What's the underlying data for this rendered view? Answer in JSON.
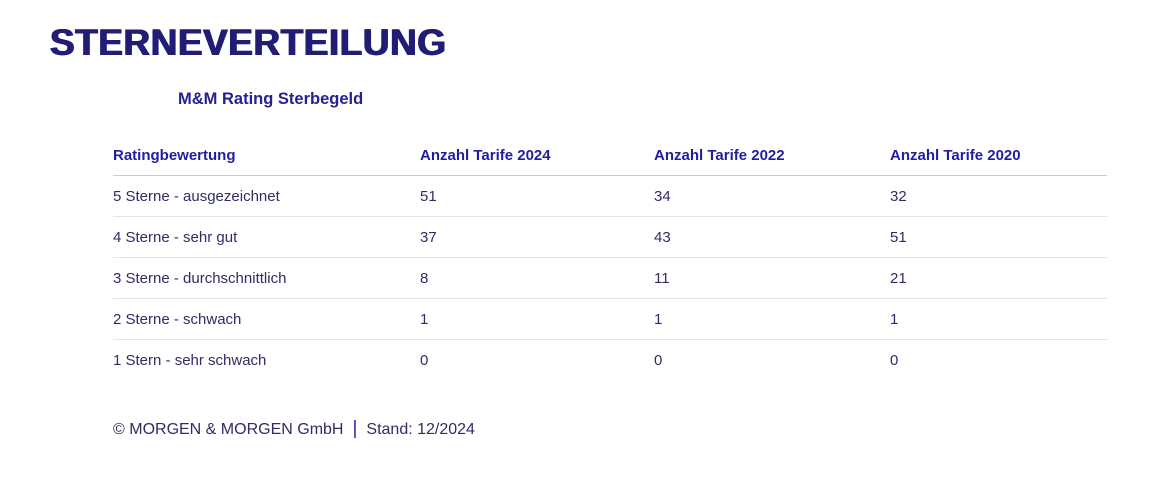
{
  "page": {
    "title": "STERNEVERTEILUNG",
    "subtitle": "M&M Rating Sterbegeld"
  },
  "colors": {
    "title_indigo": "#211c74",
    "subtitle_blue": "#262094",
    "header_blue": "#221da0",
    "body_navy": "#2e2d64",
    "header_divider": "#c6cfd8",
    "row_divider": "#dfe5ea",
    "background": "#ffffff"
  },
  "chart_data": {
    "type": "table",
    "title": "STERNEVERTEILUNG",
    "subtitle": "M&M Rating Sterbegeld",
    "columns": [
      "Ratingbewertung",
      "Anzahl Tarife 2024",
      "Anzahl Tarife 2022",
      "Anzahl Tarife 2020"
    ],
    "rows": [
      [
        "5 Sterne - ausgezeichnet",
        51,
        34,
        32
      ],
      [
        "4 Sterne - sehr gut",
        37,
        43,
        51
      ],
      [
        "3 Sterne - durchschnittlich",
        8,
        11,
        21
      ],
      [
        "2 Sterne - schwach",
        1,
        1,
        1
      ],
      [
        "1 Stern - sehr schwach",
        0,
        0,
        0
      ]
    ],
    "layout": {
      "grid": "horizontal row dividers only",
      "legend_position": "none"
    }
  },
  "footer": {
    "copyright": "© MORGEN & MORGEN GmbH",
    "separator": "|",
    "stand": "Stand: 12/2024"
  }
}
